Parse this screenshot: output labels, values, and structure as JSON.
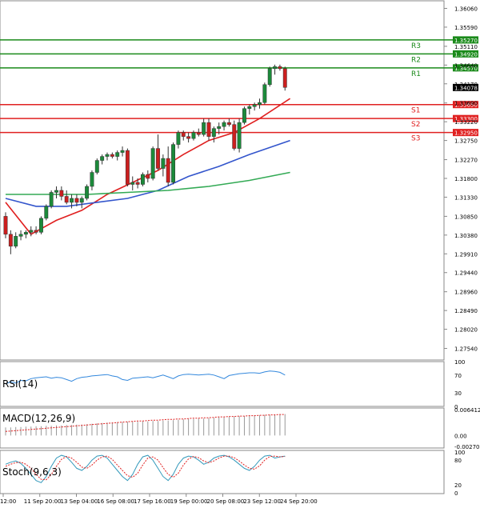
{
  "chart_data": {
    "type": "candlestick",
    "symbol": "GBPUSD",
    "price_axis": {
      "ylim": [
        1.2725,
        1.3625
      ],
      "ticks": [
        "1.36060",
        "1.35590",
        "1.35110",
        "1.34640",
        "1.34170",
        "1.33690",
        "1.33220",
        "1.32750",
        "1.32270",
        "1.31800",
        "1.31330",
        "1.30850",
        "1.30380",
        "1.29910",
        "1.29440",
        "1.28960",
        "1.28490",
        "1.28020",
        "1.27540"
      ]
    },
    "levels": [
      {
        "name": "R3",
        "value": 1.3527,
        "label": "1.35270",
        "color": "#1a8a1a"
      },
      {
        "name": "R2",
        "value": 1.3492,
        "label": "1.34920",
        "color": "#1a8a1a"
      },
      {
        "name": "R1",
        "value": 1.3457,
        "label": "1.34570",
        "color": "#1a8a1a"
      },
      {
        "name": "S1",
        "value": 1.3365,
        "label": "1.33650",
        "color": "#e02020"
      },
      {
        "name": "S2",
        "value": 1.333,
        "label": "1.33300",
        "color": "#e02020"
      },
      {
        "name": "S3",
        "value": 1.3295,
        "label": "1.32950",
        "color": "#e02020"
      }
    ],
    "current_price": {
      "value": 1.34078,
      "label": "1.34078"
    },
    "x_labels": [
      "12:00",
      "11 Sep 20:00",
      "13 Sep 04:00",
      "16 Sep 08:00",
      "17 Sep 16:00",
      "19 Sep 00:00",
      "20 Sep 08:00",
      "23 Sep 12:00",
      "24 Sep 20:00"
    ],
    "candles": [
      [
        1.3085,
        1.3095,
        1.303,
        1.304
      ],
      [
        1.304,
        1.305,
        1.299,
        1.301
      ],
      [
        1.301,
        1.3045,
        1.3005,
        1.3035
      ],
      [
        1.3035,
        1.305,
        1.3025,
        1.304
      ],
      [
        1.304,
        1.305,
        1.303,
        1.3045
      ],
      [
        1.3045,
        1.306,
        1.3035,
        1.305
      ],
      [
        1.305,
        1.306,
        1.304,
        1.3045
      ],
      [
        1.3045,
        1.3085,
        1.304,
        1.308
      ],
      [
        1.308,
        1.3115,
        1.3075,
        1.311
      ],
      [
        1.311,
        1.315,
        1.3105,
        1.3145
      ],
      [
        1.3145,
        1.316,
        1.313,
        1.315
      ],
      [
        1.315,
        1.316,
        1.3125,
        1.3135
      ],
      [
        1.3135,
        1.315,
        1.3115,
        1.312
      ],
      [
        1.312,
        1.314,
        1.3105,
        1.313
      ],
      [
        1.313,
        1.314,
        1.311,
        1.312
      ],
      [
        1.312,
        1.3135,
        1.3105,
        1.313
      ],
      [
        1.313,
        1.3165,
        1.3125,
        1.316
      ],
      [
        1.316,
        1.32,
        1.315,
        1.3195
      ],
      [
        1.3195,
        1.323,
        1.319,
        1.3225
      ],
      [
        1.3225,
        1.324,
        1.3215,
        1.3235
      ],
      [
        1.3235,
        1.3245,
        1.3225,
        1.324
      ],
      [
        1.324,
        1.3245,
        1.323,
        1.3235
      ],
      [
        1.3235,
        1.325,
        1.3225,
        1.3245
      ],
      [
        1.3245,
        1.326,
        1.3235,
        1.325
      ],
      [
        1.325,
        1.3255,
        1.316,
        1.3165
      ],
      [
        1.3165,
        1.3185,
        1.315,
        1.317
      ],
      [
        1.317,
        1.318,
        1.3155,
        1.3165
      ],
      [
        1.3165,
        1.3195,
        1.316,
        1.319
      ],
      [
        1.319,
        1.32,
        1.317,
        1.318
      ],
      [
        1.318,
        1.326,
        1.3175,
        1.3255
      ],
      [
        1.3255,
        1.329,
        1.32,
        1.3205
      ],
      [
        1.3205,
        1.324,
        1.3185,
        1.323
      ],
      [
        1.323,
        1.326,
        1.316,
        1.317
      ],
      [
        1.317,
        1.327,
        1.3165,
        1.3265
      ],
      [
        1.3265,
        1.33,
        1.3255,
        1.3295
      ],
      [
        1.3295,
        1.33,
        1.3275,
        1.3285
      ],
      [
        1.3285,
        1.3295,
        1.327,
        1.328
      ],
      [
        1.328,
        1.33,
        1.3275,
        1.3295
      ],
      [
        1.3295,
        1.3305,
        1.3285,
        1.329
      ],
      [
        1.329,
        1.333,
        1.3285,
        1.332
      ],
      [
        1.332,
        1.333,
        1.3275,
        1.3285
      ],
      [
        1.3285,
        1.331,
        1.327,
        1.3305
      ],
      [
        1.3305,
        1.332,
        1.329,
        1.331
      ],
      [
        1.331,
        1.3325,
        1.33,
        1.332
      ],
      [
        1.332,
        1.333,
        1.331,
        1.3315
      ],
      [
        1.3315,
        1.3325,
        1.325,
        1.3255
      ],
      [
        1.3255,
        1.333,
        1.3245,
        1.332
      ],
      [
        1.332,
        1.336,
        1.3315,
        1.3355
      ],
      [
        1.3355,
        1.3365,
        1.334,
        1.336
      ],
      [
        1.336,
        1.337,
        1.335,
        1.3365
      ],
      [
        1.3365,
        1.338,
        1.3355,
        1.337
      ],
      [
        1.337,
        1.342,
        1.3365,
        1.3415
      ],
      [
        1.3415,
        1.346,
        1.341,
        1.3455
      ],
      [
        1.3455,
        1.3465,
        1.344,
        1.346
      ],
      [
        1.346,
        1.3465,
        1.345,
        1.3455
      ],
      [
        1.3455,
        1.346,
        1.34,
        1.3408
      ]
    ],
    "moving_averages": [
      {
        "color": "#e02020",
        "points": [
          [
            0,
            1.312
          ],
          [
            5,
            1.304
          ],
          [
            10,
            1.3075
          ],
          [
            15,
            1.31
          ],
          [
            20,
            1.314
          ],
          [
            25,
            1.317
          ],
          [
            30,
            1.32
          ],
          [
            35,
            1.324
          ],
          [
            40,
            1.3275
          ],
          [
            45,
            1.3295
          ],
          [
            50,
            1.333
          ],
          [
            56,
            1.338
          ]
        ]
      },
      {
        "color": "#3355cc",
        "points": [
          [
            0,
            1.313
          ],
          [
            6,
            1.311
          ],
          [
            12,
            1.311
          ],
          [
            18,
            1.312
          ],
          [
            24,
            1.313
          ],
          [
            30,
            1.315
          ],
          [
            36,
            1.3185
          ],
          [
            42,
            1.321
          ],
          [
            48,
            1.324
          ],
          [
            56,
            1.3275
          ]
        ]
      },
      {
        "color": "#33aa55",
        "points": [
          [
            0,
            1.314
          ],
          [
            8,
            1.314
          ],
          [
            16,
            1.314
          ],
          [
            24,
            1.3145
          ],
          [
            32,
            1.315
          ],
          [
            40,
            1.316
          ],
          [
            48,
            1.3175
          ],
          [
            56,
            1.3195
          ]
        ]
      }
    ],
    "rsi": {
      "label": "RSI(14)",
      "ticks": [
        "100",
        "70",
        "30",
        "0"
      ],
      "values": [
        50,
        55,
        52,
        58,
        57,
        62,
        64,
        65,
        66,
        63,
        65,
        64,
        60,
        56,
        62,
        65,
        66,
        68,
        69,
        70,
        71,
        68,
        66,
        60,
        58,
        63,
        64,
        65,
        66,
        64,
        67,
        70,
        66,
        62,
        68,
        71,
        72,
        71,
        70,
        71,
        72,
        70,
        66,
        62,
        69,
        71,
        73,
        74,
        75,
        75,
        74,
        77,
        79,
        78,
        76,
        70
      ]
    },
    "macd": {
      "label": "MACD(12,26,9)",
      "ticks": [
        "0.006412",
        "0.00",
        "-0.002701"
      ],
      "histogram": [
        0.002,
        0.002,
        0.0021,
        0.0021,
        0.0022,
        0.0022,
        0.0023,
        0.0023,
        0.0024,
        0.0024,
        0.0025,
        0.0025,
        0.0026,
        0.0026,
        0.0027,
        0.0027,
        0.0028,
        0.0029,
        0.003,
        0.0031,
        0.0032,
        0.0032,
        0.0033,
        0.0033,
        0.0034,
        0.0034,
        0.0034,
        0.0035,
        0.0035,
        0.0036,
        0.0036,
        0.0037,
        0.0037,
        0.0038,
        0.0039,
        0.004,
        0.0041,
        0.0041,
        0.0042,
        0.0042,
        0.0043,
        0.0044,
        0.0045,
        0.0045,
        0.0046,
        0.0047,
        0.0048,
        0.0048,
        0.0049,
        0.005,
        0.005,
        0.0051,
        0.0051,
        0.0052,
        0.0052,
        0.0053
      ],
      "signal": [
        0.001,
        0.0011,
        0.0012,
        0.0013,
        0.0014,
        0.0015,
        0.0016,
        0.0017,
        0.0018,
        0.0019,
        0.002,
        0.0021,
        0.0022,
        0.0023,
        0.0024,
        0.0025,
        0.0026,
        0.0027,
        0.0028,
        0.0029,
        0.003,
        0.0031,
        0.0032,
        0.0033,
        0.0034,
        0.0035,
        0.0036,
        0.0036,
        0.0037,
        0.0038,
        0.0038,
        0.0039,
        0.004,
        0.004,
        0.0041,
        0.0041,
        0.0042,
        0.0043,
        0.0043,
        0.0044,
        0.0044,
        0.0045,
        0.0046,
        0.0046,
        0.0047,
        0.0047,
        0.0048,
        0.0048,
        0.0049,
        0.0049,
        0.005,
        0.005,
        0.0051,
        0.0051,
        0.0052,
        0.0052
      ]
    },
    "stoch": {
      "label": "Stoch(9,6,3)",
      "ticks": [
        "100",
        "80",
        "20",
        "0"
      ],
      "k": [
        70,
        75,
        78,
        72,
        60,
        45,
        30,
        25,
        40,
        65,
        85,
        92,
        88,
        75,
        60,
        55,
        65,
        80,
        90,
        92,
        85,
        70,
        55,
        40,
        30,
        45,
        70,
        88,
        92,
        80,
        60,
        40,
        30,
        45,
        70,
        85,
        90,
        88,
        80,
        70,
        75,
        85,
        90,
        92,
        88,
        80,
        70,
        60,
        55,
        65,
        80,
        90,
        92,
        85,
        88,
        90
      ],
      "d": [
        65,
        70,
        74,
        75,
        70,
        60,
        45,
        33,
        32,
        45,
        65,
        82,
        89,
        85,
        75,
        63,
        60,
        68,
        80,
        88,
        90,
        82,
        68,
        55,
        42,
        38,
        48,
        68,
        85,
        88,
        80,
        62,
        45,
        38,
        48,
        68,
        83,
        89,
        86,
        78,
        74,
        78,
        85,
        90,
        90,
        86,
        78,
        68,
        60,
        58,
        66,
        80,
        89,
        90,
        88,
        89
      ]
    }
  }
}
